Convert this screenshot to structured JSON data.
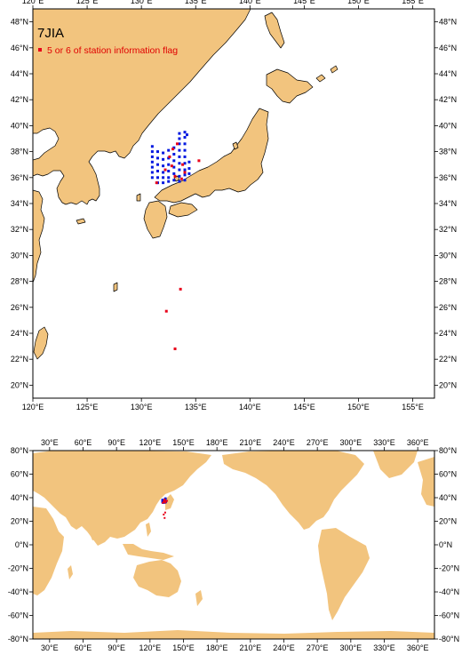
{
  "colors": {
    "land": "#f2c47e",
    "coast": "#000000",
    "flag_station": "#e8001a",
    "good_station": "#0018e0",
    "frame": "#000000"
  },
  "regional_map": {
    "title": "7JIA",
    "legend_label": "5 or 6 of station information flag",
    "lon_range": [
      120,
      157
    ],
    "lat_range": [
      19,
      49
    ],
    "x_tick_labels": [
      "120°E",
      "125°E",
      "130°E",
      "135°E",
      "140°E",
      "145°E",
      "150°E",
      "155°E"
    ],
    "y_tick_labels": [
      "20°N",
      "22°N",
      "24°N",
      "26°N",
      "28°N",
      "30°N",
      "32°N",
      "34°N",
      "36°N",
      "38°N",
      "40°N",
      "42°N",
      "44°N",
      "46°N",
      "48°N"
    ],
    "x_tick_values": [
      120,
      125,
      130,
      135,
      140,
      145,
      150,
      155
    ],
    "y_tick_values": [
      20,
      22,
      24,
      26,
      28,
      30,
      32,
      34,
      36,
      38,
      40,
      42,
      44,
      46,
      48
    ]
  },
  "global_map": {
    "lon_range": [
      15,
      375
    ],
    "lat_range": [
      -80,
      80
    ],
    "x_tick_labels": [
      "30°E",
      "60°E",
      "90°E",
      "120°E",
      "150°E",
      "180°E",
      "210°E",
      "240°E",
      "270°E",
      "300°E",
      "330°E",
      "360°E"
    ],
    "y_tick_labels": [
      "-80°N",
      "-60°N",
      "-40°N",
      "-20°N",
      "0°N",
      "20°N",
      "40°N",
      "60°N",
      "80°N"
    ],
    "x_tick_values": [
      30,
      60,
      90,
      120,
      150,
      180,
      210,
      240,
      270,
      300,
      330,
      360
    ],
    "y_tick_values": [
      -80,
      -60,
      -40,
      -20,
      0,
      20,
      40,
      60,
      80
    ]
  },
  "chart_data": [
    {
      "type": "scatter",
      "title": "7JIA",
      "series": [
        {
          "name": "5 or 6 of station information flag",
          "points": [
            [
              133.6,
              27.4
            ],
            [
              132.3,
              25.7
            ],
            [
              133.1,
              22.8
            ],
            [
              135.3,
              37.3
            ],
            [
              132.9,
              38.2
            ],
            [
              133.3,
              38.6
            ],
            [
              132.6,
              37.6
            ],
            [
              133.8,
              37.0
            ],
            [
              132.2,
              36.6
            ],
            [
              133.1,
              36.1
            ],
            [
              133.7,
              35.9
            ],
            [
              131.4,
              35.6
            ],
            [
              132.8,
              36.9
            ],
            [
              134.0,
              36.4
            ]
          ]
        },
        {
          "points": [
            [
              131.0,
              38.4
            ],
            [
              131.0,
              38.0
            ],
            [
              131.0,
              37.6
            ],
            [
              131.0,
              37.2
            ],
            [
              131.0,
              36.8
            ],
            [
              131.0,
              36.4
            ],
            [
              131.0,
              36.0
            ],
            [
              131.5,
              38.0
            ],
            [
              131.5,
              37.5
            ],
            [
              131.5,
              37.0
            ],
            [
              131.5,
              36.5
            ],
            [
              131.5,
              36.0
            ],
            [
              131.5,
              35.6
            ],
            [
              132.0,
              37.9
            ],
            [
              132.0,
              37.4
            ],
            [
              132.0,
              36.9
            ],
            [
              132.0,
              36.4
            ],
            [
              132.0,
              36.0
            ],
            [
              132.0,
              35.6
            ],
            [
              132.5,
              38.1
            ],
            [
              132.5,
              37.5
            ],
            [
              132.5,
              37.0
            ],
            [
              132.5,
              36.5
            ],
            [
              132.5,
              36.0
            ],
            [
              132.5,
              35.7
            ],
            [
              133.0,
              38.3
            ],
            [
              133.0,
              37.8
            ],
            [
              133.0,
              37.3
            ],
            [
              133.0,
              36.8
            ],
            [
              133.0,
              36.3
            ],
            [
              133.0,
              35.8
            ],
            [
              133.5,
              39.4
            ],
            [
              133.5,
              39.0
            ],
            [
              133.5,
              38.6
            ],
            [
              133.5,
              38.1
            ],
            [
              133.5,
              37.6
            ],
            [
              133.5,
              37.1
            ],
            [
              133.5,
              36.6
            ],
            [
              133.5,
              36.1
            ],
            [
              133.5,
              35.7
            ],
            [
              134.0,
              39.5
            ],
            [
              134.0,
              39.1
            ],
            [
              134.0,
              38.6
            ],
            [
              134.0,
              38.1
            ],
            [
              134.0,
              37.6
            ],
            [
              134.0,
              37.1
            ],
            [
              134.0,
              36.6
            ],
            [
              134.0,
              36.2
            ],
            [
              134.0,
              35.8
            ],
            [
              134.4,
              37.2
            ],
            [
              134.4,
              36.7
            ],
            [
              134.4,
              36.3
            ],
            [
              134.2,
              39.3
            ]
          ]
        }
      ]
    }
  ]
}
